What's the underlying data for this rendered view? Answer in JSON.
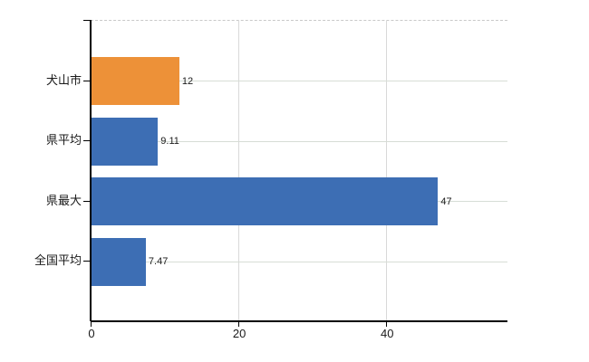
{
  "chart_data": {
    "type": "bar",
    "orientation": "horizontal",
    "title": "",
    "xlabel": "",
    "ylabel": "",
    "categories": [
      "犬山市",
      "県平均",
      "県最大",
      "全国平均"
    ],
    "values": [
      12,
      9.11,
      47,
      7.47
    ],
    "value_labels": [
      "12",
      "9.11",
      "47",
      "7.47"
    ],
    "bar_colors": [
      "#ED9138",
      "#3D6EB4",
      "#3D6EB4",
      "#3D6EB4"
    ],
    "highlight_category": "犬山市",
    "x_ticks": [
      0,
      20,
      40
    ],
    "x_tick_labels": [
      "0",
      "20",
      "40"
    ],
    "xlim": [
      0,
      56.4
    ],
    "grid": "on",
    "legend": "none"
  },
  "colors": {
    "bar_default": "#3D6EB4",
    "bar_highlight": "#ED9138",
    "axis": "#000000",
    "gridline_vertical": "#D9D9D9",
    "gridline_horizontal": "#D7DDD6",
    "plot_top_border": "#C9C9C9",
    "text": "#1A1A1A",
    "background": "#FFFFFF"
  }
}
